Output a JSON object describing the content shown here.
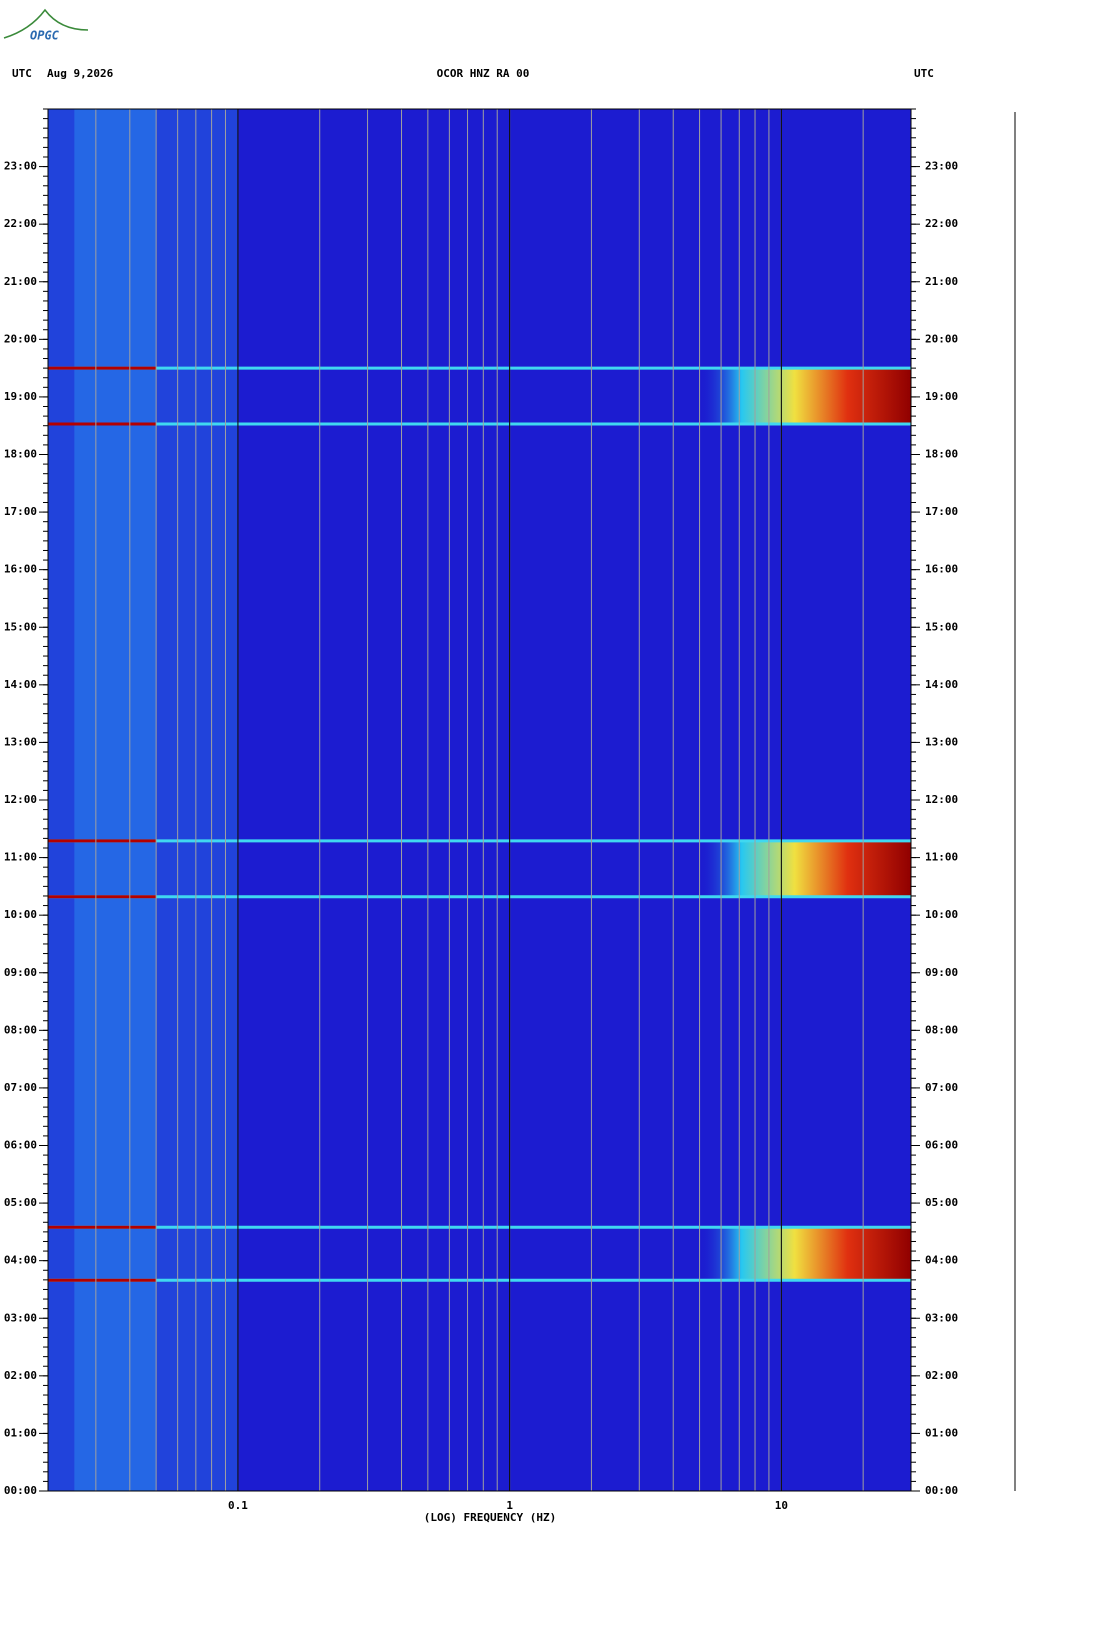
{
  "logo": "OPGC",
  "chart_data": {
    "type": "spectrogram",
    "header_left": "UTC",
    "date": "Aug 9,2026",
    "title": "OCOR HNZ RA 00",
    "header_right": "UTC",
    "xlabel": "(LOG) FREQUENCY (HZ)",
    "x_scale": "log",
    "xlim": [
      0.02,
      30
    ],
    "xticks": [
      {
        "value": 0.1,
        "label": "0.1"
      },
      1,
      10
    ],
    "ylim": [
      0,
      24
    ],
    "yticks": [
      {
        "value": 0,
        "label": "00:00"
      },
      {
        "value": 1,
        "label": "01:00"
      },
      {
        "value": 2,
        "label": "02:00"
      },
      {
        "value": 3,
        "label": "03:00"
      },
      {
        "value": 4,
        "label": "04:00"
      },
      {
        "value": 5,
        "label": "05:00"
      },
      {
        "value": 6,
        "label": "06:00"
      },
      {
        "value": 7,
        "label": "07:00"
      },
      {
        "value": 8,
        "label": "08:00"
      },
      {
        "value": 9,
        "label": "09:00"
      },
      {
        "value": 10,
        "label": "10:00"
      },
      {
        "value": 11,
        "label": "11:00"
      },
      {
        "value": 12,
        "label": "12:00"
      },
      {
        "value": 13,
        "label": "13:00"
      },
      {
        "value": 14,
        "label": "14:00"
      },
      {
        "value": 15,
        "label": "15:00"
      },
      {
        "value": 16,
        "label": "16:00"
      },
      {
        "value": 17,
        "label": "17:00"
      },
      {
        "value": 18,
        "label": "18:00"
      },
      {
        "value": 19,
        "label": "19:00"
      },
      {
        "value": 20,
        "label": "20:00"
      },
      {
        "value": 21,
        "label": "21:00"
      },
      {
        "value": 22,
        "label": "22:00"
      },
      {
        "value": 23,
        "label": "23:00"
      }
    ],
    "events": [
      [
        3.66,
        4.58
      ],
      [
        10.32,
        11.29
      ],
      [
        18.53,
        19.5
      ]
    ],
    "color": "#1c1cd0",
    "lowfreq_color": "#2a8cf0",
    "event_color": "#b40000"
  }
}
